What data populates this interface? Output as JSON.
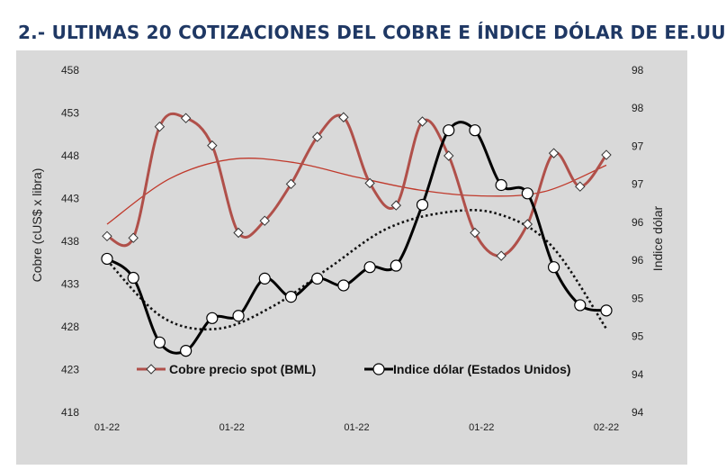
{
  "title": "2.- ULTIMAS 20 COTIZACIONES DEL COBRE E ÍNDICE DÓLAR DE EE.UU",
  "chart_data": {
    "type": "line",
    "title": "2.- ULTIMAS 20 COTIZACIONES DEL COBRE E ÍNDICE DÓLAR DE EE.UU",
    "ylabel": "Cobre (cUS$ x libra)",
    "y2label": "Indice dólar",
    "ylim": [
      418,
      458
    ],
    "y_ticks": [
      "458",
      "453",
      "448",
      "443",
      "438",
      "433",
      "428",
      "423",
      "418"
    ],
    "y2lim": [
      94,
      98.5
    ],
    "y2_ticks": [
      "98",
      "98",
      "97",
      "97",
      "96",
      "96",
      "95",
      "95",
      "94",
      "94"
    ],
    "x_tick_labels": [
      "01-22",
      "01-22",
      "01-22",
      "01-22",
      "02-22"
    ],
    "grid": false,
    "legend_position": "bottom",
    "colors": {
      "background": "#d9d9d9",
      "copper": "#b0504a",
      "copper_trend": "#c0392b",
      "dollar": "#000000",
      "title": "#1f3864"
    },
    "series": [
      {
        "name": "Cobre precio spot (BML)",
        "axis": "left",
        "marker": "diamond",
        "values": [
          438.6,
          438.4,
          451.4,
          452.4,
          449.2,
          439.0,
          440.4,
          444.7,
          450.2,
          452.5,
          444.8,
          442.2,
          452.0,
          448.0,
          439.0,
          436.3,
          440.0,
          448.3,
          444.4,
          448.1
        ]
      },
      {
        "name": "Indice dólar (Estados Unidos)",
        "axis": "right",
        "marker": "circle",
        "values": [
          96.02,
          95.77,
          94.92,
          94.81,
          95.24,
          95.27,
          95.76,
          95.52,
          95.76,
          95.67,
          95.91,
          95.93,
          96.73,
          97.71,
          97.71,
          96.99,
          96.88,
          95.91,
          95.41,
          95.34
        ]
      }
    ],
    "trendlines": [
      {
        "series": "Cobre precio spot (BML)",
        "style": "solid-thin",
        "values": [
          440.0,
          445.3,
          447.6,
          447.2,
          445.5,
          444.0,
          443.3,
          443.8,
          446.9
        ]
      },
      {
        "series": "Indice dólar (Estados Unidos)",
        "style": "dotted",
        "values": [
          96.0,
          95.25,
          95.1,
          95.4,
          95.9,
          96.4,
          96.62,
          96.62,
          96.2,
          95.1
        ]
      }
    ]
  }
}
